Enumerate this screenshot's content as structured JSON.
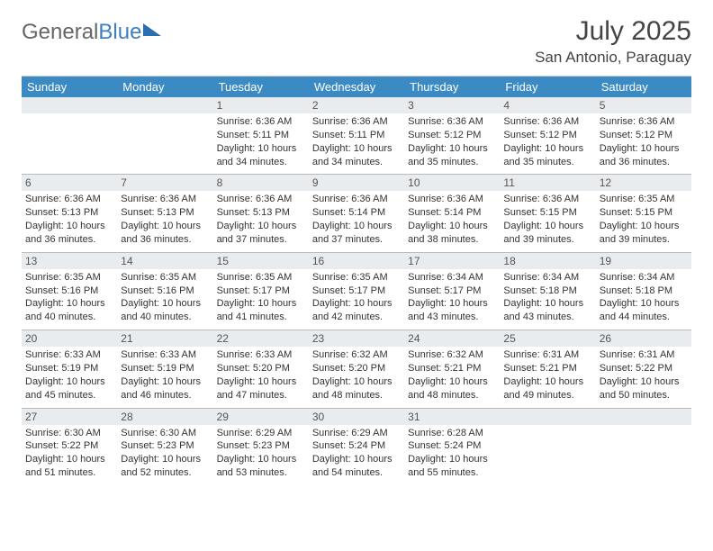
{
  "logo": {
    "part1": "General",
    "part2": "Blue"
  },
  "title": "July 2025",
  "location": "San Antonio, Paraguay",
  "colors": {
    "header_bg": "#3b8ac4",
    "header_fg": "#ffffff",
    "daynum_bg": "#e9ecef",
    "border": "#bbbbbb",
    "text": "#333333",
    "logo_blue": "#3b7fc4"
  },
  "day_headers": [
    "Sunday",
    "Monday",
    "Tuesday",
    "Wednesday",
    "Thursday",
    "Friday",
    "Saturday"
  ],
  "weeks": [
    [
      {
        "num": "",
        "sunrise": "",
        "sunset": "",
        "daylight": ""
      },
      {
        "num": "",
        "sunrise": "",
        "sunset": "",
        "daylight": ""
      },
      {
        "num": "1",
        "sunrise": "Sunrise: 6:36 AM",
        "sunset": "Sunset: 5:11 PM",
        "daylight": "Daylight: 10 hours and 34 minutes."
      },
      {
        "num": "2",
        "sunrise": "Sunrise: 6:36 AM",
        "sunset": "Sunset: 5:11 PM",
        "daylight": "Daylight: 10 hours and 34 minutes."
      },
      {
        "num": "3",
        "sunrise": "Sunrise: 6:36 AM",
        "sunset": "Sunset: 5:12 PM",
        "daylight": "Daylight: 10 hours and 35 minutes."
      },
      {
        "num": "4",
        "sunrise": "Sunrise: 6:36 AM",
        "sunset": "Sunset: 5:12 PM",
        "daylight": "Daylight: 10 hours and 35 minutes."
      },
      {
        "num": "5",
        "sunrise": "Sunrise: 6:36 AM",
        "sunset": "Sunset: 5:12 PM",
        "daylight": "Daylight: 10 hours and 36 minutes."
      }
    ],
    [
      {
        "num": "6",
        "sunrise": "Sunrise: 6:36 AM",
        "sunset": "Sunset: 5:13 PM",
        "daylight": "Daylight: 10 hours and 36 minutes."
      },
      {
        "num": "7",
        "sunrise": "Sunrise: 6:36 AM",
        "sunset": "Sunset: 5:13 PM",
        "daylight": "Daylight: 10 hours and 36 minutes."
      },
      {
        "num": "8",
        "sunrise": "Sunrise: 6:36 AM",
        "sunset": "Sunset: 5:13 PM",
        "daylight": "Daylight: 10 hours and 37 minutes."
      },
      {
        "num": "9",
        "sunrise": "Sunrise: 6:36 AM",
        "sunset": "Sunset: 5:14 PM",
        "daylight": "Daylight: 10 hours and 37 minutes."
      },
      {
        "num": "10",
        "sunrise": "Sunrise: 6:36 AM",
        "sunset": "Sunset: 5:14 PM",
        "daylight": "Daylight: 10 hours and 38 minutes."
      },
      {
        "num": "11",
        "sunrise": "Sunrise: 6:36 AM",
        "sunset": "Sunset: 5:15 PM",
        "daylight": "Daylight: 10 hours and 39 minutes."
      },
      {
        "num": "12",
        "sunrise": "Sunrise: 6:35 AM",
        "sunset": "Sunset: 5:15 PM",
        "daylight": "Daylight: 10 hours and 39 minutes."
      }
    ],
    [
      {
        "num": "13",
        "sunrise": "Sunrise: 6:35 AM",
        "sunset": "Sunset: 5:16 PM",
        "daylight": "Daylight: 10 hours and 40 minutes."
      },
      {
        "num": "14",
        "sunrise": "Sunrise: 6:35 AM",
        "sunset": "Sunset: 5:16 PM",
        "daylight": "Daylight: 10 hours and 40 minutes."
      },
      {
        "num": "15",
        "sunrise": "Sunrise: 6:35 AM",
        "sunset": "Sunset: 5:17 PM",
        "daylight": "Daylight: 10 hours and 41 minutes."
      },
      {
        "num": "16",
        "sunrise": "Sunrise: 6:35 AM",
        "sunset": "Sunset: 5:17 PM",
        "daylight": "Daylight: 10 hours and 42 minutes."
      },
      {
        "num": "17",
        "sunrise": "Sunrise: 6:34 AM",
        "sunset": "Sunset: 5:17 PM",
        "daylight": "Daylight: 10 hours and 43 minutes."
      },
      {
        "num": "18",
        "sunrise": "Sunrise: 6:34 AM",
        "sunset": "Sunset: 5:18 PM",
        "daylight": "Daylight: 10 hours and 43 minutes."
      },
      {
        "num": "19",
        "sunrise": "Sunrise: 6:34 AM",
        "sunset": "Sunset: 5:18 PM",
        "daylight": "Daylight: 10 hours and 44 minutes."
      }
    ],
    [
      {
        "num": "20",
        "sunrise": "Sunrise: 6:33 AM",
        "sunset": "Sunset: 5:19 PM",
        "daylight": "Daylight: 10 hours and 45 minutes."
      },
      {
        "num": "21",
        "sunrise": "Sunrise: 6:33 AM",
        "sunset": "Sunset: 5:19 PM",
        "daylight": "Daylight: 10 hours and 46 minutes."
      },
      {
        "num": "22",
        "sunrise": "Sunrise: 6:33 AM",
        "sunset": "Sunset: 5:20 PM",
        "daylight": "Daylight: 10 hours and 47 minutes."
      },
      {
        "num": "23",
        "sunrise": "Sunrise: 6:32 AM",
        "sunset": "Sunset: 5:20 PM",
        "daylight": "Daylight: 10 hours and 48 minutes."
      },
      {
        "num": "24",
        "sunrise": "Sunrise: 6:32 AM",
        "sunset": "Sunset: 5:21 PM",
        "daylight": "Daylight: 10 hours and 48 minutes."
      },
      {
        "num": "25",
        "sunrise": "Sunrise: 6:31 AM",
        "sunset": "Sunset: 5:21 PM",
        "daylight": "Daylight: 10 hours and 49 minutes."
      },
      {
        "num": "26",
        "sunrise": "Sunrise: 6:31 AM",
        "sunset": "Sunset: 5:22 PM",
        "daylight": "Daylight: 10 hours and 50 minutes."
      }
    ],
    [
      {
        "num": "27",
        "sunrise": "Sunrise: 6:30 AM",
        "sunset": "Sunset: 5:22 PM",
        "daylight": "Daylight: 10 hours and 51 minutes."
      },
      {
        "num": "28",
        "sunrise": "Sunrise: 6:30 AM",
        "sunset": "Sunset: 5:23 PM",
        "daylight": "Daylight: 10 hours and 52 minutes."
      },
      {
        "num": "29",
        "sunrise": "Sunrise: 6:29 AM",
        "sunset": "Sunset: 5:23 PM",
        "daylight": "Daylight: 10 hours and 53 minutes."
      },
      {
        "num": "30",
        "sunrise": "Sunrise: 6:29 AM",
        "sunset": "Sunset: 5:24 PM",
        "daylight": "Daylight: 10 hours and 54 minutes."
      },
      {
        "num": "31",
        "sunrise": "Sunrise: 6:28 AM",
        "sunset": "Sunset: 5:24 PM",
        "daylight": "Daylight: 10 hours and 55 minutes."
      },
      {
        "num": "",
        "sunrise": "",
        "sunset": "",
        "daylight": ""
      },
      {
        "num": "",
        "sunrise": "",
        "sunset": "",
        "daylight": ""
      }
    ]
  ]
}
